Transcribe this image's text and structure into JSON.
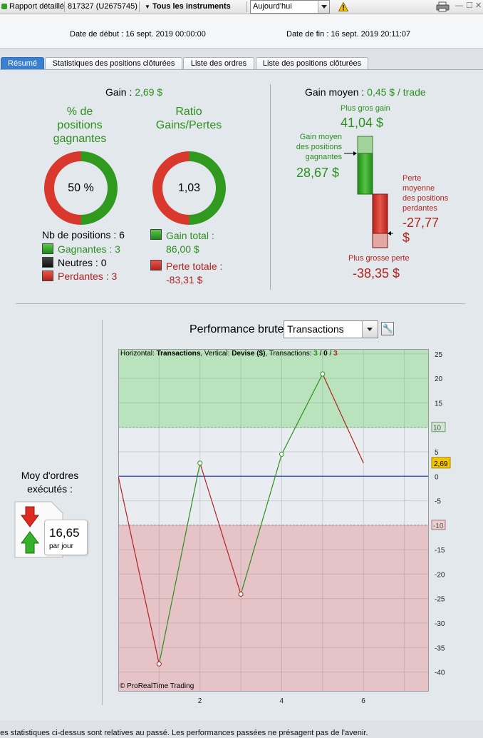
{
  "toolbar": {
    "report_label": "Rapport détaillé",
    "account": "817327 (U2675745)",
    "instruments": "Tous les instruments",
    "period": "Aujourd'hui",
    "warning_icon": "warning-icon",
    "print_icon": "printer-icon"
  },
  "dates": {
    "start_label": "Date de début :",
    "start_value": "16 sept. 2019 00:00:00",
    "end_label": "Date de fin :",
    "end_value": "16 sept. 2019 20:11:07"
  },
  "tabs": [
    {
      "label": "Résumé",
      "active": true
    },
    {
      "label": "Statistiques des positions clôturées",
      "active": false
    },
    {
      "label": "Liste des ordres",
      "active": false
    },
    {
      "label": "Liste des positions clôturées",
      "active": false
    }
  ],
  "summary": {
    "gain_label": "Gain :",
    "gain_value": "2,69 $",
    "pct_title_1": "% de",
    "pct_title_2": "positions",
    "pct_title_3": "gagnantes",
    "pct_value": "50 %",
    "pct_fraction": 0.5,
    "ratio_title_1": "Ratio",
    "ratio_title_2": "Gains/Pertes",
    "ratio_value": "1,03",
    "nb_positions": "Nb de positions : 6",
    "winners": "Gagnantes : 3",
    "neutrals": "Neutres : 0",
    "losers": "Perdantes : 3",
    "gain_total_label": "Gain total :",
    "gain_total_value": "86,00 $",
    "loss_total_label": "Perte totale :",
    "loss_total_value": "-83,31 $"
  },
  "avg_gain": {
    "label": "Gain moyen :",
    "value": "0,45 $ / trade",
    "biggest_gain_label": "Plus gros gain",
    "biggest_gain_value": "41,04 $",
    "avg_win_label_1": "Gain moyen",
    "avg_win_label_2": "des positions",
    "avg_win_label_3": "gagnantes",
    "avg_win_value": "28,67 $",
    "avg_loss_label_1": "Perte",
    "avg_loss_label_2": "moyenne",
    "avg_loss_label_3": "des positions",
    "avg_loss_label_4": "perdantes",
    "avg_loss_value_1": "-27,77",
    "avg_loss_value_2": "$",
    "biggest_loss_label": "Plus grosse perte",
    "biggest_loss_value": "-38,35 $"
  },
  "orders": {
    "title_1": "Moy d'ordres",
    "title_2": "exécutés :",
    "value": "16,65",
    "unit": "par jour"
  },
  "performance": {
    "title": "Performance brute",
    "select_value": "Transactions",
    "info_prefix": "Horizontal: ",
    "info_h": "Transactions",
    "info_mid": ", Vertical: ",
    "info_v": "Devise ($)",
    "info_tr": ", Transactions: ",
    "info_w": "3",
    "info_slash1": " / ",
    "info_n": "0",
    "info_slash2": " / ",
    "info_l": "3",
    "copyright": "© ProRealTime Trading",
    "last_value_label": "2,69"
  },
  "chart_data": {
    "type": "line",
    "x": [
      0,
      1,
      2,
      3,
      4,
      5,
      6
    ],
    "y": [
      0,
      -38.35,
      2.69,
      -24.1,
      4.5,
      20.9,
      2.69
    ],
    "segment_colors": [
      "red",
      "green",
      "red",
      "green",
      "green",
      "red"
    ],
    "xlim": [
      0,
      7.6
    ],
    "ylim": [
      -44,
      26
    ],
    "x_ticks": [
      2,
      4,
      6
    ],
    "y_ticks": [
      25,
      20,
      15,
      10,
      5,
      0,
      -5,
      -10,
      -15,
      -20,
      -25,
      -30,
      -35,
      -40
    ],
    "upper_band": 10,
    "lower_band": -10,
    "grid": true
  },
  "footer": "Les statistiques ci-dessus sont relatives au passé. Les performances passées ne présagent pas de l'avenir.",
  "colors": {
    "green": "#2c8f1e",
    "red": "#b3231d",
    "accent": "#3a7fd0"
  }
}
